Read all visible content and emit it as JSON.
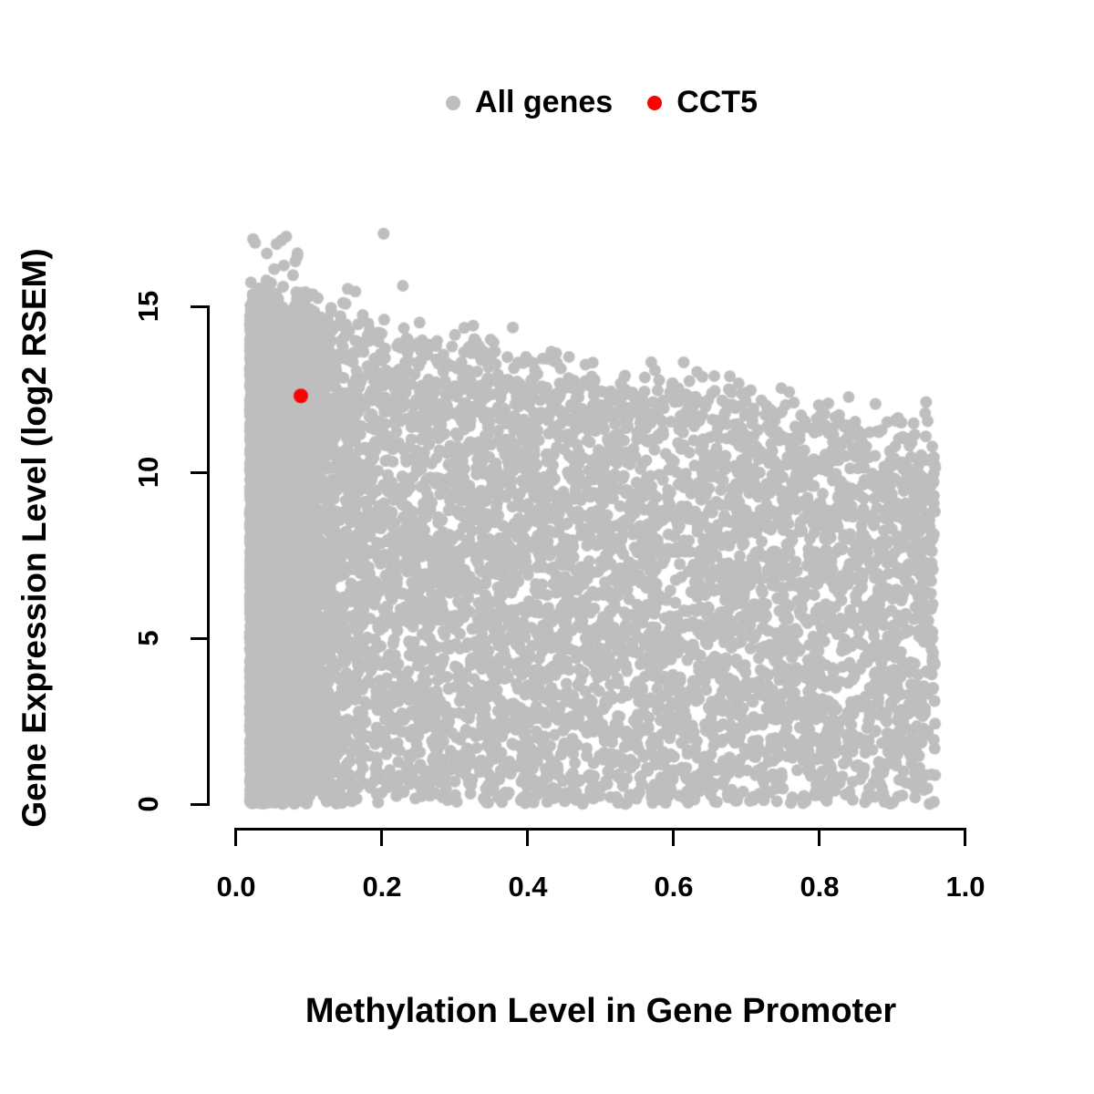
{
  "figure": {
    "background": "#ffffff",
    "axis_color": "#000000",
    "text_color": "#000000"
  },
  "legend": {
    "position": "top-center",
    "items": [
      {
        "label": "All genes",
        "color": "#bebebe"
      },
      {
        "label": "CCT5",
        "color": "#ff0000"
      }
    ]
  },
  "chart_data": {
    "type": "scatter",
    "title": "",
    "xlabel": "Methylation Level in Gene Promoter",
    "ylabel": "Gene Expression Level (log2 RSEM)",
    "xlim": [
      0.0,
      1.0
    ],
    "ylim": [
      0,
      17.5
    ],
    "x_ticks": [
      0.0,
      0.2,
      0.4,
      0.6,
      0.8,
      1.0
    ],
    "x_tick_labels": [
      "0.0",
      "0.2",
      "0.4",
      "0.6",
      "0.8",
      "1.0"
    ],
    "y_ticks": [
      0,
      5,
      10,
      15
    ],
    "y_tick_labels": [
      "0",
      "5",
      "10",
      "15"
    ],
    "grid": false,
    "legend_position": "top-center",
    "series": [
      {
        "name": "All genes",
        "kind": "procedural-cloud",
        "color": "#bebebe",
        "marker": "circle",
        "marker_radius_px": 6.5,
        "summary": "Dense cloud of thousands of genes; promoter methylation skewed toward low values (0.02-0.15 very dense), spanning up to ~0.96; expression spans 0 to ~17 with upper envelope declining from ~15 at methylation 0 to ~11 at methylation 0.95; dense row of points along expression = 0 across the full methylation range",
        "generator": {
          "seed": 42,
          "n": 13000,
          "x_min": 0.02,
          "x_max": 0.96,
          "x_range": 0.94,
          "left_band_fraction": 0.5,
          "left_band_sd": 0.045,
          "x_power": 1.35,
          "env_intercept": 15.0,
          "env_slope": -4.0,
          "env_noise": 0.45,
          "y_power": 0.95,
          "outliers": {
            "n": 25,
            "x_sd": 0.11,
            "y_base": 15.0,
            "y_spread": 2.3
          }
        }
      },
      {
        "name": "CCT5",
        "kind": "points",
        "color": "#ff0000",
        "marker": "circle",
        "marker_radius_px": 8,
        "points": [
          [
            0.09,
            12.3
          ]
        ]
      }
    ]
  }
}
